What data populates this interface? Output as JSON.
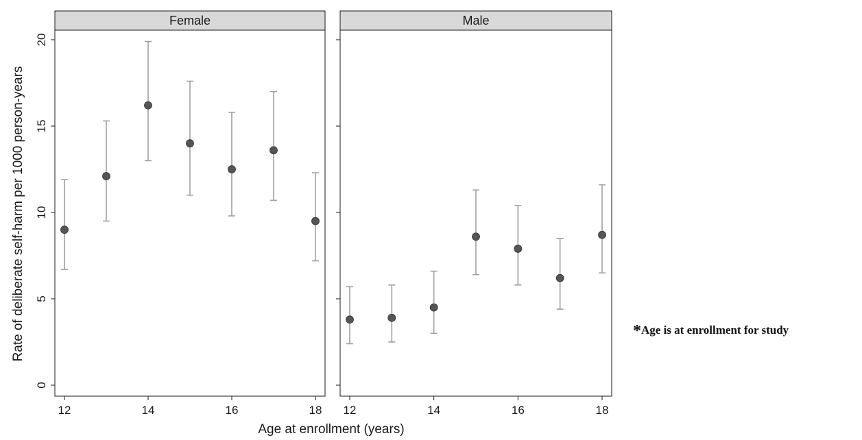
{
  "chart_data": {
    "type": "scatter",
    "subtype": "point-with-error-bars",
    "title": "",
    "xlabel": "Age at enrollment (years)",
    "ylabel": "Rate of deliberate self-harm per 1000 person-years",
    "xlim": [
      12,
      18
    ],
    "ylim": [
      0,
      20
    ],
    "x_ticks": [
      12,
      14,
      16,
      18
    ],
    "y_ticks": [
      0,
      5,
      10,
      15,
      20
    ],
    "grid": false,
    "point_color": "#555555",
    "errorbar_color": "#a0a0a0",
    "panels": [
      {
        "name": "Female",
        "points": [
          {
            "x": 12,
            "y": 9.0,
            "lo": 6.7,
            "hi": 11.9
          },
          {
            "x": 13,
            "y": 12.1,
            "lo": 9.5,
            "hi": 15.3
          },
          {
            "x": 14,
            "y": 16.2,
            "lo": 13.0,
            "hi": 19.9
          },
          {
            "x": 15,
            "y": 14.0,
            "lo": 11.0,
            "hi": 17.6
          },
          {
            "x": 16,
            "y": 12.5,
            "lo": 9.8,
            "hi": 15.8
          },
          {
            "x": 17,
            "y": 13.6,
            "lo": 10.7,
            "hi": 17.0
          },
          {
            "x": 18,
            "y": 9.5,
            "lo": 7.2,
            "hi": 12.3
          }
        ]
      },
      {
        "name": "Male",
        "points": [
          {
            "x": 12,
            "y": 3.8,
            "lo": 2.4,
            "hi": 5.7
          },
          {
            "x": 13,
            "y": 3.9,
            "lo": 2.5,
            "hi": 5.8
          },
          {
            "x": 14,
            "y": 4.5,
            "lo": 3.0,
            "hi": 6.6
          },
          {
            "x": 15,
            "y": 8.6,
            "lo": 6.4,
            "hi": 11.3
          },
          {
            "x": 16,
            "y": 7.9,
            "lo": 5.8,
            "hi": 10.4
          },
          {
            "x": 17,
            "y": 6.2,
            "lo": 4.4,
            "hi": 8.5
          },
          {
            "x": 18,
            "y": 8.7,
            "lo": 6.5,
            "hi": 11.6
          }
        ]
      }
    ]
  },
  "footnote": {
    "marker": "*",
    "text": "Age is at enrollment for study"
  }
}
